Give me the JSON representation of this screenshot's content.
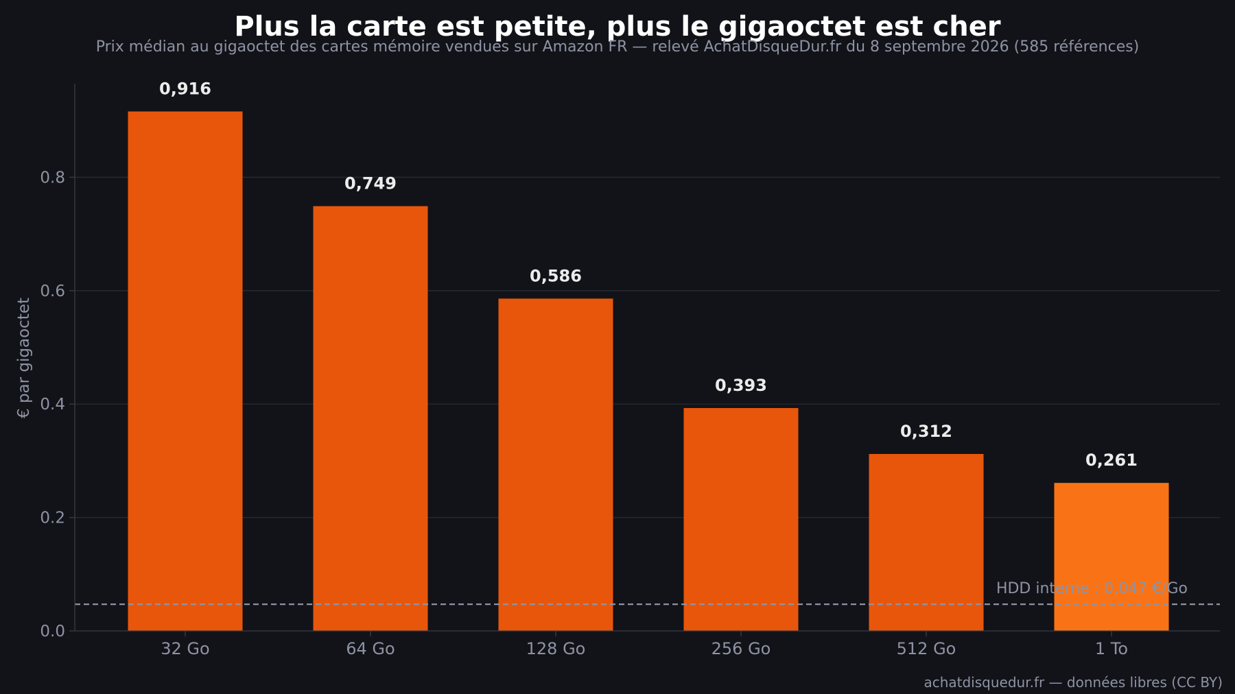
{
  "chart_data": {
    "type": "bar",
    "title": "Plus la carte est petite, plus le gigaoctet est cher",
    "subtitle": "Prix médian au gigaoctet des cartes mémoire vendues sur Amazon FR — relevé AchatDisqueDur.fr du 8 septembre 2026 (585 références)",
    "xlabel": "",
    "ylabel": "€ par gigaoctet",
    "categories": [
      "32 Go",
      "64 Go",
      "128 Go",
      "256 Go",
      "512 Go",
      "1 To"
    ],
    "values": [
      0.916,
      0.749,
      0.586,
      0.393,
      0.312,
      0.261
    ],
    "value_labels": [
      "0,916",
      "0,749",
      "0,586",
      "0,393",
      "0,312",
      "0,261"
    ],
    "ylim": [
      0,
      0.965
    ],
    "yticks": [
      0.0,
      0.2,
      0.4,
      0.6,
      0.8
    ],
    "ytick_labels": [
      "0.0",
      "0.2",
      "0.4",
      "0.6",
      "0.8"
    ],
    "grid": true,
    "reference_line": {
      "value": 0.047,
      "label": "HDD interne : 0,047 €/Go",
      "color": "#8e93a4"
    },
    "bar_colors": [
      "#e8560b",
      "#e8560b",
      "#e8560b",
      "#e8560b",
      "#e8560b",
      "#f97316"
    ]
  },
  "footer": "achatdisquedur.fr — données libres (CC BY)"
}
